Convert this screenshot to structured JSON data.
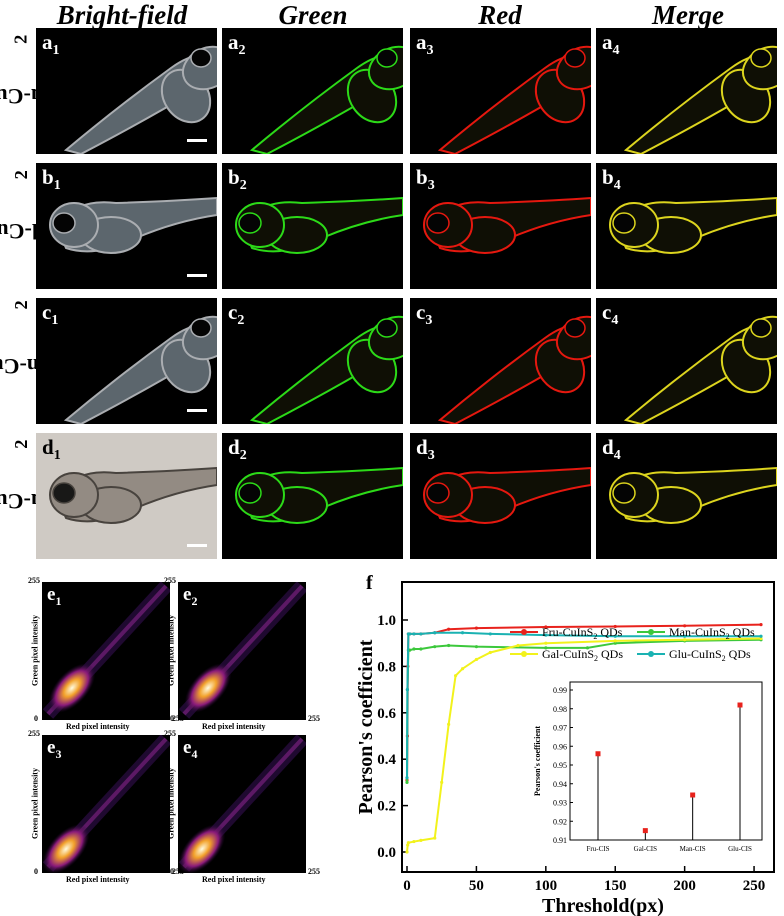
{
  "columns": [
    "Bright-field",
    "Green",
    "Red",
    "Merge"
  ],
  "rows": [
    {
      "label": "Fru-CuInS",
      "sub": "2",
      "letter": "a"
    },
    {
      "label": "Gal-CuInS",
      "sub": "2",
      "letter": "b"
    },
    {
      "label": "Man-CuInS",
      "sub": "2",
      "letter": "c"
    },
    {
      "label": "Glu-CuInS",
      "sub": "2",
      "letter": "d"
    }
  ],
  "panel_indices": [
    "1",
    "2",
    "3",
    "4"
  ],
  "channel_colors": {
    "green": "#2fe61a",
    "red": "#f21a10",
    "merge": "#e8e020"
  },
  "scatter_panels": [
    {
      "letter": "e",
      "index": "1"
    },
    {
      "letter": "e",
      "index": "2"
    },
    {
      "letter": "e",
      "index": "3"
    },
    {
      "letter": "e",
      "index": "4"
    }
  ],
  "scatter_axes": {
    "xlabel": "Red pixel intensity",
    "ylabel": "Green pixel intensity",
    "min": "0",
    "max": "255"
  },
  "chart_data": {
    "type": "line",
    "panel_label": "f",
    "xlabel": "Threshold(px)",
    "ylabel": "Pearson's coefficient",
    "xlim": [
      0,
      255
    ],
    "ylim": [
      0.0,
      1.0
    ],
    "xticks": [
      0,
      50,
      100,
      150,
      200,
      250
    ],
    "yticks": [
      0.0,
      0.2,
      0.4,
      0.6,
      0.8,
      1.0
    ],
    "series": [
      {
        "name": "Fru-CuInS2 QDs",
        "name_base": "Fru-CuInS",
        "name_sub": "2",
        "name_tail": " QDs",
        "color": "#e8221c",
        "x": [
          0,
          0.3,
          0.6,
          1,
          2,
          5,
          10,
          20,
          30,
          50,
          100,
          150,
          200,
          255
        ],
        "y": [
          0.31,
          0.5,
          0.8,
          0.94,
          0.94,
          0.94,
          0.94,
          0.945,
          0.96,
          0.965,
          0.97,
          0.972,
          0.975,
          0.98
        ]
      },
      {
        "name": "Man-CuInS2 QDs",
        "name_base": "Man-CuInS",
        "name_sub": "2",
        "name_tail": " QDs",
        "color": "#3cc83c",
        "x": [
          0,
          0.3,
          1,
          2,
          5,
          10,
          20,
          30,
          50,
          100,
          130,
          150,
          200,
          255
        ],
        "y": [
          0.3,
          0.7,
          0.87,
          0.87,
          0.875,
          0.875,
          0.885,
          0.89,
          0.885,
          0.88,
          0.88,
          0.9,
          0.91,
          0.915
        ]
      },
      {
        "name": "Gal-CuInS2 QDs",
        "name_base": "Gal-CuInS",
        "name_sub": "2",
        "name_tail": " QDs",
        "color": "#f2f21c",
        "x": [
          0,
          0.5,
          1,
          5,
          10,
          20,
          25,
          30,
          35,
          40,
          50,
          60,
          80,
          100,
          150,
          200,
          255
        ],
        "y": [
          0.0,
          0.03,
          0.04,
          0.045,
          0.05,
          0.06,
          0.3,
          0.55,
          0.76,
          0.79,
          0.83,
          0.86,
          0.89,
          0.9,
          0.91,
          0.915,
          0.92
        ]
      },
      {
        "name": "Glu-CuInS2 QDs",
        "name_base": "Glu-CuInS",
        "name_sub": "2",
        "name_tail": " QDs",
        "color": "#1ab2b2",
        "x": [
          0,
          0.3,
          1,
          2,
          5,
          10,
          20,
          40,
          60,
          100,
          150,
          200,
          255
        ],
        "y": [
          0.32,
          0.7,
          0.94,
          0.94,
          0.94,
          0.94,
          0.945,
          0.945,
          0.94,
          0.935,
          0.93,
          0.93,
          0.93
        ]
      }
    ],
    "inset": {
      "type": "scatter",
      "ylabel": "Pearson's coefficient",
      "categories": [
        "Fru-CIS",
        "Gal-CIS",
        "Man-CIS",
        "Glu-CIS"
      ],
      "values": [
        0.956,
        0.915,
        0.934,
        0.982
      ],
      "ylim": [
        0.91,
        0.99
      ],
      "yticks": [
        "0.91",
        "0.92",
        "0.93",
        "0.94",
        "0.95",
        "0.96",
        "0.97",
        "0.98",
        "0.99"
      ],
      "color": "#e8221c"
    }
  }
}
